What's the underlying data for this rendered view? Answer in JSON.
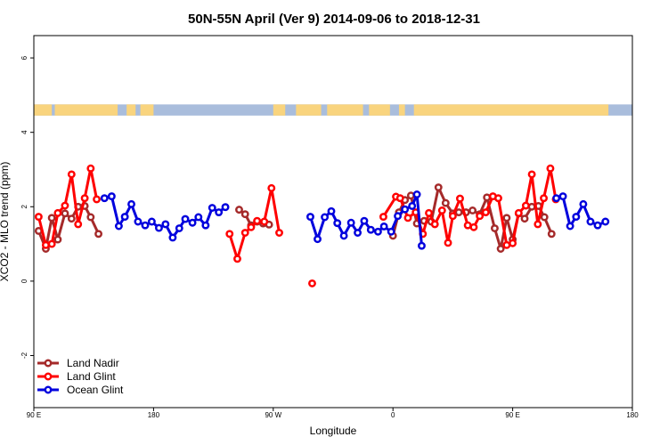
{
  "chart_data": {
    "type": "line",
    "title": "50N-55N April (Ver 9)   2014-09-06 to 2018-12-31",
    "xlabel": "Longitude",
    "ylabel": "XCO2 - MLO trend (ppm)",
    "ylim": [
      -3.4,
      6.6
    ],
    "xlim": [
      0,
      1
    ],
    "x_ticks": [
      {
        "label": "90 E",
        "at": 0.0
      },
      {
        "label": "180",
        "at": 0.2
      },
      {
        "label": "90 W",
        "at": 0.4
      },
      {
        "label": "0",
        "at": 0.6
      },
      {
        "label": "90 E",
        "at": 0.8
      },
      {
        "label": "180",
        "at": 1.0
      }
    ],
    "y_ticks": [
      -2,
      0,
      2,
      4,
      6
    ],
    "legend_position": "bottom-left",
    "land_band": {
      "y_range": [
        4.45,
        4.75
      ],
      "ocean_color": "#a9bddc",
      "land_color": "#f9d47e",
      "land_segments": [
        [
          0.0,
          0.03
        ],
        [
          0.035,
          0.14
        ],
        [
          0.155,
          0.17
        ],
        [
          0.178,
          0.2
        ],
        [
          0.4,
          0.42
        ],
        [
          0.438,
          0.48
        ],
        [
          0.49,
          0.55
        ],
        [
          0.56,
          0.595
        ],
        [
          0.61,
          0.62
        ],
        [
          0.635,
          0.96
        ]
      ]
    },
    "series": [
      {
        "name": "Land Nadir",
        "color": "#a52a2a",
        "points": [
          [
            0.008,
            1.35
          ],
          [
            0.02,
            0.87
          ],
          [
            0.03,
            1.7
          ],
          [
            0.04,
            1.12
          ],
          [
            0.052,
            1.82
          ],
          [
            0.063,
            1.68
          ],
          [
            0.074,
            2.0
          ],
          [
            0.085,
            2.02
          ],
          [
            0.095,
            1.72
          ],
          [
            0.108,
            1.27
          ],
          null,
          [
            0.343,
            1.92
          ],
          [
            0.353,
            1.8
          ],
          [
            0.363,
            1.5
          ],
          [
            0.373,
            1.6
          ],
          [
            0.383,
            1.55
          ],
          [
            0.393,
            1.52
          ],
          null,
          [
            0.6,
            1.22
          ],
          [
            0.61,
            1.85
          ],
          [
            0.62,
            2.18
          ],
          [
            0.63,
            2.3
          ],
          [
            0.64,
            1.55
          ],
          [
            0.652,
            1.62
          ],
          [
            0.664,
            1.6
          ],
          [
            0.676,
            2.52
          ],
          [
            0.688,
            2.1
          ],
          [
            0.7,
            1.82
          ],
          [
            0.71,
            1.85
          ],
          [
            0.722,
            1.85
          ],
          [
            0.733,
            1.9
          ],
          [
            0.745,
            1.8
          ],
          [
            0.757,
            2.25
          ],
          [
            0.77,
            1.42
          ],
          [
            0.78,
            0.87
          ],
          [
            0.79,
            1.7
          ],
          [
            0.8,
            1.12
          ],
          [
            0.81,
            1.82
          ],
          [
            0.82,
            1.68
          ],
          [
            0.832,
            2.0
          ],
          [
            0.843,
            2.02
          ],
          [
            0.853,
            1.72
          ],
          [
            0.865,
            1.27
          ]
        ]
      },
      {
        "name": "Land Glint",
        "color": "#ff0000",
        "points": [
          [
            0.008,
            1.73
          ],
          [
            0.02,
            0.97
          ],
          [
            0.03,
            1.0
          ],
          [
            0.04,
            1.83
          ],
          [
            0.052,
            2.03
          ],
          [
            0.063,
            2.87
          ],
          [
            0.074,
            1.53
          ],
          [
            0.085,
            2.23
          ],
          [
            0.095,
            3.03
          ],
          [
            0.105,
            2.2
          ],
          null,
          [
            0.327,
            1.27
          ],
          [
            0.34,
            0.6
          ],
          [
            0.353,
            1.3
          ],
          [
            0.363,
            1.45
          ],
          [
            0.373,
            1.62
          ],
          [
            0.385,
            1.6
          ],
          [
            0.397,
            2.5
          ],
          [
            0.41,
            1.3
          ],
          null,
          [
            0.465,
            -0.06
          ],
          null,
          [
            0.584,
            1.73
          ],
          [
            0.605,
            2.27
          ],
          [
            0.612,
            2.23
          ],
          [
            0.625,
            1.7
          ],
          [
            0.638,
            1.85
          ],
          [
            0.65,
            1.27
          ],
          [
            0.66,
            1.83
          ],
          [
            0.67,
            1.53
          ],
          [
            0.682,
            1.9
          ],
          [
            0.692,
            1.03
          ],
          [
            0.7,
            1.75
          ],
          [
            0.712,
            2.22
          ],
          [
            0.725,
            1.5
          ],
          [
            0.735,
            1.45
          ],
          [
            0.745,
            1.75
          ],
          [
            0.755,
            1.85
          ],
          [
            0.767,
            2.28
          ],
          [
            0.776,
            2.23
          ],
          [
            0.79,
            0.97
          ],
          [
            0.8,
            1.02
          ],
          [
            0.81,
            1.83
          ],
          [
            0.822,
            2.03
          ],
          [
            0.832,
            2.87
          ],
          [
            0.842,
            1.53
          ],
          [
            0.852,
            2.23
          ],
          [
            0.863,
            3.03
          ],
          [
            0.872,
            2.2
          ]
        ]
      },
      {
        "name": "Ocean Glint",
        "color": "#0000dd",
        "points": [
          [
            0.118,
            2.23
          ],
          [
            0.13,
            2.28
          ],
          [
            0.142,
            1.48
          ],
          [
            0.152,
            1.73
          ],
          [
            0.163,
            2.07
          ],
          [
            0.174,
            1.6
          ],
          [
            0.186,
            1.5
          ],
          [
            0.197,
            1.6
          ],
          [
            0.209,
            1.43
          ],
          [
            0.22,
            1.53
          ],
          [
            0.232,
            1.17
          ],
          [
            0.243,
            1.42
          ],
          [
            0.253,
            1.67
          ],
          [
            0.265,
            1.57
          ],
          [
            0.275,
            1.72
          ],
          [
            0.287,
            1.5
          ],
          [
            0.298,
            1.97
          ],
          [
            0.309,
            1.85
          ],
          [
            0.32,
            1.99
          ],
          null,
          [
            0.462,
            1.73
          ],
          [
            0.474,
            1.13
          ],
          [
            0.486,
            1.72
          ],
          [
            0.497,
            1.88
          ],
          [
            0.507,
            1.56
          ],
          [
            0.518,
            1.22
          ],
          [
            0.53,
            1.57
          ],
          [
            0.541,
            1.3
          ],
          [
            0.552,
            1.62
          ],
          [
            0.563,
            1.38
          ],
          [
            0.575,
            1.33
          ],
          [
            0.585,
            1.47
          ],
          [
            0.597,
            1.33
          ],
          [
            0.608,
            1.75
          ],
          [
            0.62,
            1.93
          ],
          [
            0.632,
            2.02
          ],
          [
            0.64,
            2.33
          ],
          [
            0.648,
            0.95
          ],
          null,
          [
            0.873,
            2.23
          ],
          [
            0.884,
            2.28
          ],
          [
            0.896,
            1.48
          ],
          [
            0.906,
            1.73
          ],
          [
            0.918,
            2.07
          ],
          [
            0.93,
            1.6
          ],
          [
            0.942,
            1.5
          ],
          [
            0.955,
            1.6
          ]
        ]
      }
    ]
  }
}
